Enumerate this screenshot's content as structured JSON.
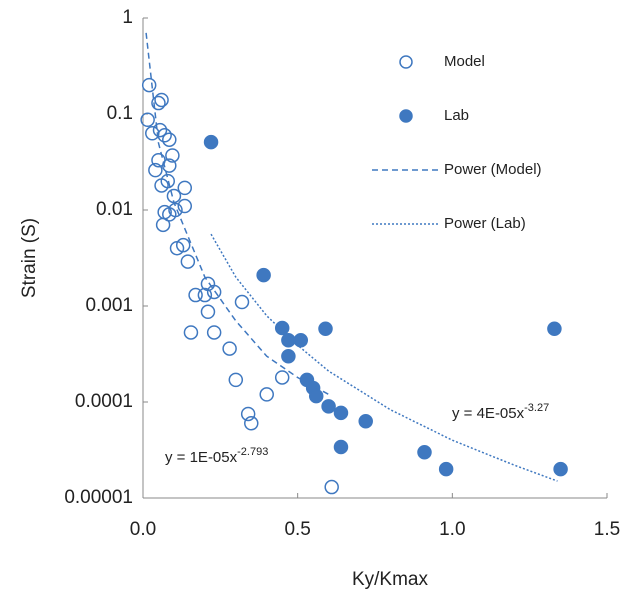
{
  "chart_data": {
    "type": "scatter",
    "x_label": "Ky/Kmax",
    "y_label": "Strain (S)",
    "xlim": [
      0,
      1.5
    ],
    "xticks": [
      {
        "value": 0,
        "label": "0.0"
      },
      {
        "value": 0.5,
        "label": "0.5"
      },
      {
        "value": 1,
        "label": "1.0"
      },
      {
        "value": 1.5,
        "label": "1.5"
      }
    ],
    "ylim": [
      1e-05,
      1
    ],
    "yticks": [
      1e-05,
      0.0001,
      0.001,
      0.01,
      0.1,
      1
    ],
    "y_scale": "log",
    "legend": "upper right",
    "series": [
      {
        "name": "Model",
        "type": "scatter",
        "marker": "open",
        "color": "#3f78c0",
        "x": [
          0.02,
          0.015,
          0.03,
          0.04,
          0.05,
          0.06,
          0.055,
          0.07,
          0.085,
          0.095,
          0.085,
          0.05,
          0.06,
          0.08,
          0.1,
          0.07,
          0.065,
          0.085,
          0.105,
          0.135,
          0.135,
          0.13,
          0.11,
          0.145,
          0.17,
          0.21,
          0.23,
          0.2,
          0.21,
          0.23,
          0.155,
          0.32,
          0.28,
          0.3,
          0.45,
          0.4,
          0.34,
          0.35,
          0.61
        ],
        "values": [
          0.2,
          0.087,
          0.063,
          0.026,
          0.13,
          0.14,
          0.068,
          0.06,
          0.054,
          0.037,
          0.029,
          0.033,
          0.018,
          0.02,
          0.014,
          0.0095,
          0.007,
          0.009,
          0.01,
          0.017,
          0.011,
          0.0043,
          0.004,
          0.0029,
          0.0013,
          0.0017,
          0.0014,
          0.0013,
          0.00087,
          0.00053,
          0.00053,
          0.0011,
          0.00036,
          0.00017,
          0.00018,
          0.00012,
          7.5e-05,
          6e-05,
          1.3e-05
        ]
      },
      {
        "name": "Lab",
        "type": "scatter",
        "marker": "filled",
        "color": "#3f78c0",
        "x": [
          0.22,
          0.39,
          0.45,
          0.47,
          0.51,
          0.47,
          0.59,
          0.53,
          0.55,
          0.56,
          0.6,
          0.64,
          0.72,
          0.64,
          0.91,
          0.98,
          1.33,
          1.35
        ],
        "values": [
          0.051,
          0.0021,
          0.00059,
          0.00044,
          0.00044,
          0.0003,
          0.00058,
          0.00017,
          0.00014,
          0.000115,
          9e-05,
          7.7e-05,
          6.3e-05,
          3.4e-05,
          3e-05,
          2e-05,
          0.00058,
          2e-05
        ]
      },
      {
        "name": "Power (Model)",
        "type": "line",
        "dash": "6,4",
        "color": "#3f78c0",
        "x": [
          0.01,
          0.05,
          0.1,
          0.2,
          0.3,
          0.4,
          0.5,
          0.6
        ],
        "values": [
          0.7,
          0.05,
          0.012,
          0.002,
          0.0007,
          0.0003,
          0.00018,
          0.00012
        ]
      },
      {
        "name": "Power (Lab)",
        "type": "line",
        "dash": "2,2",
        "color": "#3f78c0",
        "x": [
          0.22,
          0.3,
          0.4,
          0.5,
          0.6,
          0.8,
          1.0,
          1.2,
          1.34
        ],
        "values": [
          0.0056,
          0.002,
          0.00079,
          0.00039,
          0.00021,
          8.3e-05,
          4e-05,
          2.2e-05,
          1.5e-05
        ]
      }
    ],
    "annotations": [
      {
        "text": "y = 1E-05x",
        "superscript": "-2.793"
      },
      {
        "text": "y = 4E-05x",
        "superscript": "-3.27"
      }
    ]
  }
}
